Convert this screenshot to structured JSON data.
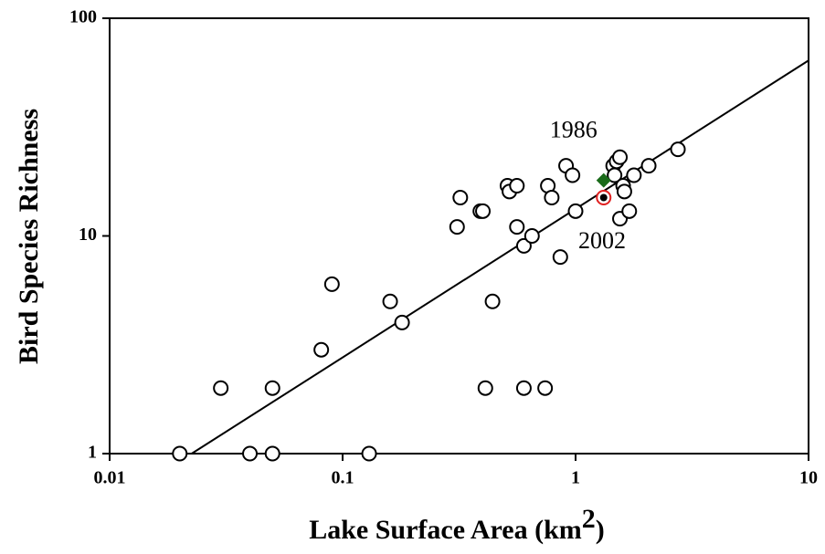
{
  "chart_data": {
    "type": "scatter",
    "xlabel": [
      "Lake Surface Area (km",
      "2",
      ")"
    ],
    "ylabel": "Bird Species Richness",
    "xlog": true,
    "ylog": true,
    "xlim": [
      0.01,
      10
    ],
    "ylim": [
      1,
      100
    ],
    "xticks": [
      0.01,
      0.1,
      1,
      10
    ],
    "yticks": [
      1,
      10,
      100
    ],
    "series": [
      {
        "name": null,
        "color": "#000000",
        "x": [
          0.02,
          0.03,
          0.04,
          0.05,
          0.05,
          0.081,
          0.09,
          0.13,
          0.16,
          0.18,
          0.31,
          0.32,
          0.39,
          0.4,
          0.41,
          0.44,
          0.51,
          0.52,
          0.56,
          0.56,
          0.6,
          0.6,
          0.65,
          0.74,
          0.76,
          0.79,
          0.86,
          0.91,
          0.97,
          1.0,
          1.45,
          1.5,
          1.55,
          1.47,
          1.6,
          1.62,
          1.55,
          1.7,
          1.78,
          2.06,
          2.75
        ],
        "values": [
          1,
          2,
          1,
          1,
          2,
          3,
          6,
          1,
          5,
          4,
          11,
          15,
          13,
          13,
          2,
          5,
          17,
          16,
          17,
          11,
          9,
          2,
          10,
          2,
          17,
          15,
          8,
          21,
          19,
          13,
          21,
          22,
          23,
          19,
          17,
          16,
          12,
          13,
          19,
          21,
          25
        ]
      },
      {
        "name": null,
        "color": "#1a6b1a",
        "marker": "diamond",
        "x": [
          1.32
        ],
        "values": [
          18
        ]
      },
      {
        "name": null,
        "color": "#e02020",
        "marker": "circle-dot",
        "x": [
          1.32
        ],
        "values": [
          15
        ]
      }
    ],
    "fit": {
      "x": [
        0.0225,
        10
      ],
      "values": [
        1,
        64
      ]
    },
    "annotations": [
      {
        "text": "1986",
        "x": 0.98,
        "y": 30
      },
      {
        "text": "2002",
        "x": 1.3,
        "y": 9.3
      }
    ]
  }
}
